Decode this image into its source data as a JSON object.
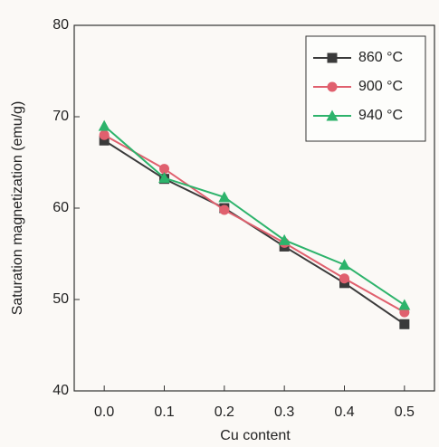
{
  "chart_data": {
    "type": "line",
    "x_label": "Cu content",
    "y_label": "Saturation magnetization (emu/g)",
    "x": [
      0.0,
      0.1,
      0.2,
      0.3,
      0.4,
      0.5
    ],
    "series": [
      {
        "name": "860 °C",
        "color": "#3a3a3a",
        "marker": "square",
        "values": [
          67.4,
          63.2,
          60.0,
          55.8,
          51.8,
          47.3
        ]
      },
      {
        "name": "900 °C",
        "color": "#e0606e",
        "marker": "circle",
        "values": [
          68.0,
          64.3,
          59.8,
          56.2,
          52.3,
          48.6
        ]
      },
      {
        "name": "940 °C",
        "color": "#2db36b",
        "marker": "triangle",
        "values": [
          69.0,
          63.3,
          61.2,
          56.5,
          53.8,
          49.4
        ]
      }
    ],
    "xlim": [
      -0.05,
      0.55
    ],
    "xticks": [
      {
        "value": 0,
        "label": "0.0"
      },
      0.1,
      0.2,
      0.3,
      0.4,
      0.5
    ],
    "ylim": [
      40,
      80
    ],
    "yticks": [
      40,
      50,
      60,
      70,
      80
    ],
    "legend": "upper right"
  }
}
